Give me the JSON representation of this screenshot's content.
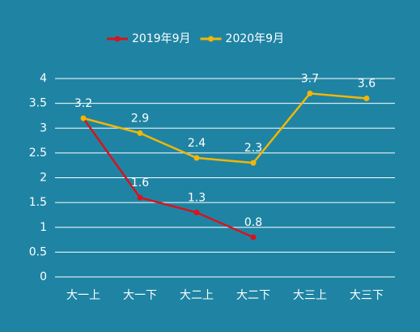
{
  "chart_data": {
    "type": "line",
    "categories": [
      "大一上",
      "大一下",
      "大二上",
      "大二下",
      "大三上",
      "大三下"
    ],
    "series": [
      {
        "name": "2019年9月",
        "color": "#d7141c",
        "values": [
          3.2,
          1.6,
          1.3,
          0.8,
          null,
          null
        ]
      },
      {
        "name": "2020年9月",
        "color": "#f2b705",
        "values": [
          3.2,
          2.9,
          2.4,
          2.3,
          3.7,
          3.6
        ]
      }
    ],
    "ylim": [
      0,
      4
    ],
    "yticks": [
      0,
      0.5,
      1,
      1.5,
      2,
      2.5,
      3,
      3.5,
      4
    ],
    "grid": true,
    "legend": "top"
  }
}
